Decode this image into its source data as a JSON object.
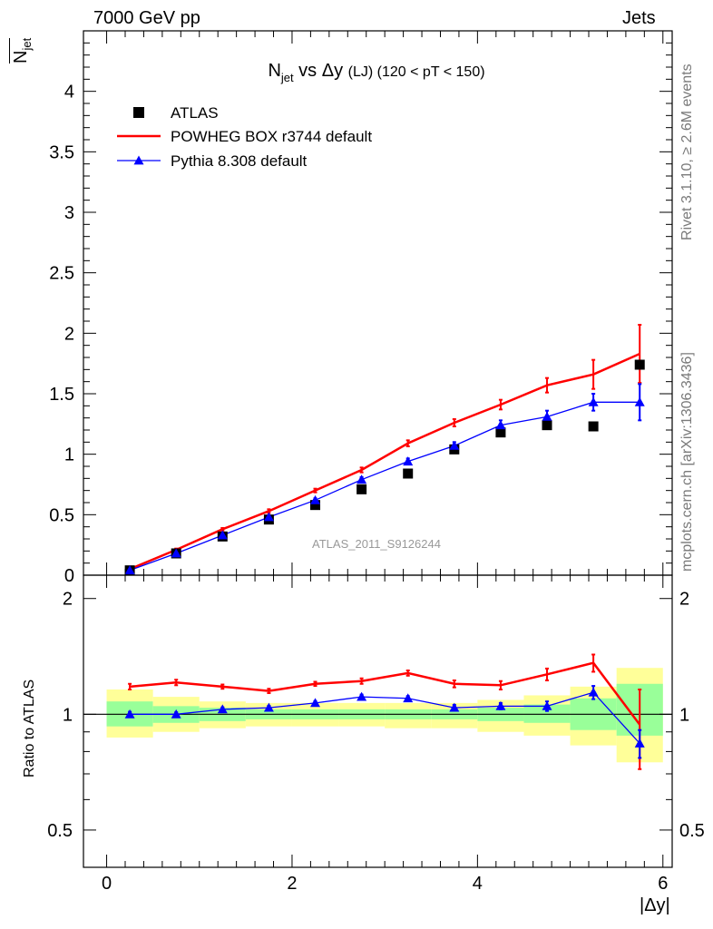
{
  "header": {
    "left": "7000 GeV pp",
    "right": "Jets"
  },
  "side_labels": {
    "top": "Rivet 3.1.10, ≥ 2.6M events",
    "bottom": "mcplots.cern.ch [arXiv:1306.3436]"
  },
  "colors": {
    "data": "#000000",
    "powheg": "#ff0000",
    "pythia": "#0000ff",
    "band_inner": "#99ff99",
    "band_outer": "#ffff99",
    "watermark": "#999999"
  },
  "chart_data": [
    {
      "type": "scatter",
      "title": "N_jet vs Δy (LJ) (120 < pT < 150)",
      "title_parts": {
        "main": "N",
        "sub": "jet",
        "mid": " vs Δy ",
        "paren": "(LJ) (120 < pT < 150)"
      },
      "ylabel": "N_jet",
      "ylabel_parts": {
        "main": "N",
        "sub": "jet"
      },
      "watermark": "ATLAS_2011_S9126244",
      "xlim": [
        -0.25,
        6.1
      ],
      "ylim": [
        0,
        4.5
      ],
      "yticks": [
        0,
        0.5,
        1,
        1.5,
        2,
        2.5,
        3,
        3.5,
        4
      ],
      "ytick_labels": [
        "0",
        "0.5",
        "1",
        "1.5",
        "2",
        "2.5",
        "3",
        "3.5",
        "4"
      ],
      "legend_position": "top-left",
      "x": [
        0.25,
        0.75,
        1.25,
        1.75,
        2.25,
        2.75,
        3.25,
        3.75,
        4.25,
        4.75,
        5.25,
        5.75
      ],
      "series": [
        {
          "name": "ATLAS",
          "marker": "square",
          "values": [
            0.04,
            0.18,
            0.32,
            0.46,
            0.58,
            0.71,
            0.84,
            1.04,
            1.18,
            1.24,
            1.23,
            1.74
          ]
        },
        {
          "name": "POWHEG BOX r3744 default",
          "marker": "line",
          "values": [
            0.05,
            0.21,
            0.38,
            0.53,
            0.7,
            0.87,
            1.09,
            1.26,
            1.41,
            1.57,
            1.66,
            1.83
          ],
          "errors": [
            0.005,
            0.01,
            0.01,
            0.015,
            0.015,
            0.02,
            0.025,
            0.03,
            0.04,
            0.06,
            0.12,
            0.24
          ]
        },
        {
          "name": "Pythia 8.308 default",
          "marker": "triangle",
          "values": [
            0.04,
            0.18,
            0.33,
            0.48,
            0.62,
            0.79,
            0.94,
            1.07,
            1.24,
            1.31,
            1.43,
            1.43
          ],
          "errors": [
            0.005,
            0.01,
            0.01,
            0.015,
            0.015,
            0.02,
            0.025,
            0.03,
            0.04,
            0.05,
            0.07,
            0.15
          ]
        }
      ]
    },
    {
      "type": "line",
      "ylabel": "Ratio to ATLAS",
      "xlabel": "|Δy|",
      "xlim": [
        -0.25,
        6.1
      ],
      "xticks": [
        0,
        2,
        4,
        6
      ],
      "xtick_labels": [
        "0",
        "2",
        "4",
        "6"
      ],
      "ylim": [
        0.4,
        2.3
      ],
      "log_y": true,
      "yticks": [
        0.5,
        1,
        2
      ],
      "ytick_labels": [
        "0.5",
        "1",
        "2"
      ],
      "x_edges": [
        0,
        0.5,
        1,
        1.5,
        2,
        2.5,
        3,
        3.5,
        4,
        4.5,
        5,
        5.5,
        6
      ],
      "band_inner": {
        "low": [
          0.93,
          0.95,
          0.96,
          0.97,
          0.97,
          0.97,
          0.97,
          0.97,
          0.96,
          0.95,
          0.91,
          0.88
        ],
        "high": [
          1.08,
          1.05,
          1.04,
          1.03,
          1.03,
          1.03,
          1.03,
          1.03,
          1.04,
          1.06,
          1.1,
          1.2
        ]
      },
      "band_outer": {
        "low": [
          0.87,
          0.9,
          0.92,
          0.93,
          0.93,
          0.93,
          0.92,
          0.92,
          0.9,
          0.88,
          0.83,
          0.75
        ],
        "high": [
          1.16,
          1.11,
          1.08,
          1.07,
          1.07,
          1.07,
          1.07,
          1.07,
          1.09,
          1.12,
          1.18,
          1.32
        ]
      },
      "x": [
        0.25,
        0.75,
        1.25,
        1.75,
        2.25,
        2.75,
        3.25,
        3.75,
        4.25,
        4.75,
        5.25,
        5.75
      ],
      "series": [
        {
          "name": "POWHEG BOX r3744 default",
          "values": [
            1.18,
            1.21,
            1.18,
            1.15,
            1.2,
            1.22,
            1.28,
            1.2,
            1.19,
            1.27,
            1.36,
            0.94
          ],
          "errors": [
            0.02,
            0.02,
            0.015,
            0.015,
            0.015,
            0.02,
            0.02,
            0.025,
            0.03,
            0.045,
            0.07,
            0.22
          ]
        },
        {
          "name": "Pythia 8.308 default",
          "values": [
            1.0,
            1.0,
            1.03,
            1.04,
            1.07,
            1.11,
            1.1,
            1.04,
            1.05,
            1.05,
            1.14,
            0.84
          ],
          "errors": [
            0.015,
            0.012,
            0.012,
            0.012,
            0.012,
            0.015,
            0.015,
            0.018,
            0.02,
            0.03,
            0.045,
            0.07
          ]
        }
      ]
    }
  ]
}
